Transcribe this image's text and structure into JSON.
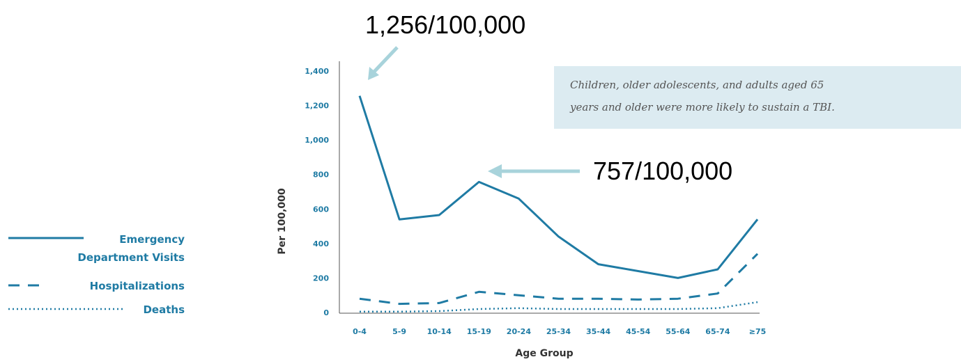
{
  "chart_data": {
    "type": "line",
    "categories": [
      "0-4",
      "5-9",
      "10-14",
      "15-19",
      "20-24",
      "25-34",
      "35-44",
      "45-54",
      "55-64",
      "65-74",
      "≥75"
    ],
    "series": [
      {
        "name": "Emergency Department Visits",
        "style": "solid",
        "values": [
          1256,
          540,
          565,
          757,
          660,
          440,
          280,
          240,
          200,
          250,
          540
        ]
      },
      {
        "name": "Hospitalizations",
        "style": "dashed",
        "values": [
          80,
          50,
          55,
          120,
          100,
          80,
          80,
          75,
          80,
          110,
          340
        ]
      },
      {
        "name": "Deaths",
        "style": "dotted",
        "values": [
          5,
          5,
          8,
          20,
          25,
          20,
          20,
          20,
          20,
          25,
          60
        ]
      }
    ],
    "yticks": [
      0,
      200,
      400,
      600,
      800,
      1000,
      1200,
      1400
    ],
    "ytick_labels": [
      "0",
      "200",
      "400",
      "600",
      "800",
      "1,000",
      "1,200",
      "1,400"
    ],
    "ylim": [
      0,
      1400
    ],
    "xlabel": "Age Group",
    "ylabel": "Per 100,000",
    "legend": {
      "placement": "left",
      "lines": [
        [
          "Emergency",
          "Department Visits"
        ],
        [
          "Hospitalizations"
        ],
        [
          "Deaths"
        ]
      ]
    },
    "annotations": [
      {
        "text": "1,256/100,000",
        "category": "0-4",
        "value": 1256
      },
      {
        "text": "757/100,000",
        "category": "15-19",
        "value": 757
      }
    ],
    "note": {
      "lines": [
        "Children, older adolescents, and adults aged 65",
        "years and older were more likely to sustain a TBI."
      ]
    },
    "colors": {
      "line": "#1f7ba4",
      "tick": "#1f7ba4",
      "arrow": "#a8d3db",
      "note_bg": "#dcebf1",
      "note_text": "#555555",
      "axis": "#555555"
    }
  }
}
